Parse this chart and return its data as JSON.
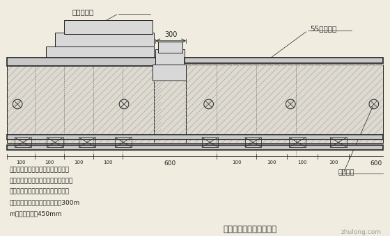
{
  "bg_color": "#f0ede0",
  "line_color": "#222222",
  "hatch_bg": "#dedad0",
  "plate_gray": "#b0b0b0",
  "title": "大模板与小锂模连接构造",
  "label_dingxing": "定型锂模板",
  "label_55": "55型锂模板",
  "label_zhishui": "止水螺杆",
  "dim_300": "300",
  "dim_600": "600",
  "dim_100": "100",
  "note_line1": "注：大模板与小锂模连接处，定型作",
  "note_line2": "成与小锂模孔径对应，用山型卡满布连",
  "note_line3": "接固定，墙面支撑体系按照常规做法",
  "note_line4": "柱两侧第一排止水螺杆竖向间距300m",
  "note_line5": "m，其余间距为450mm",
  "watermark": "zhulong.com"
}
